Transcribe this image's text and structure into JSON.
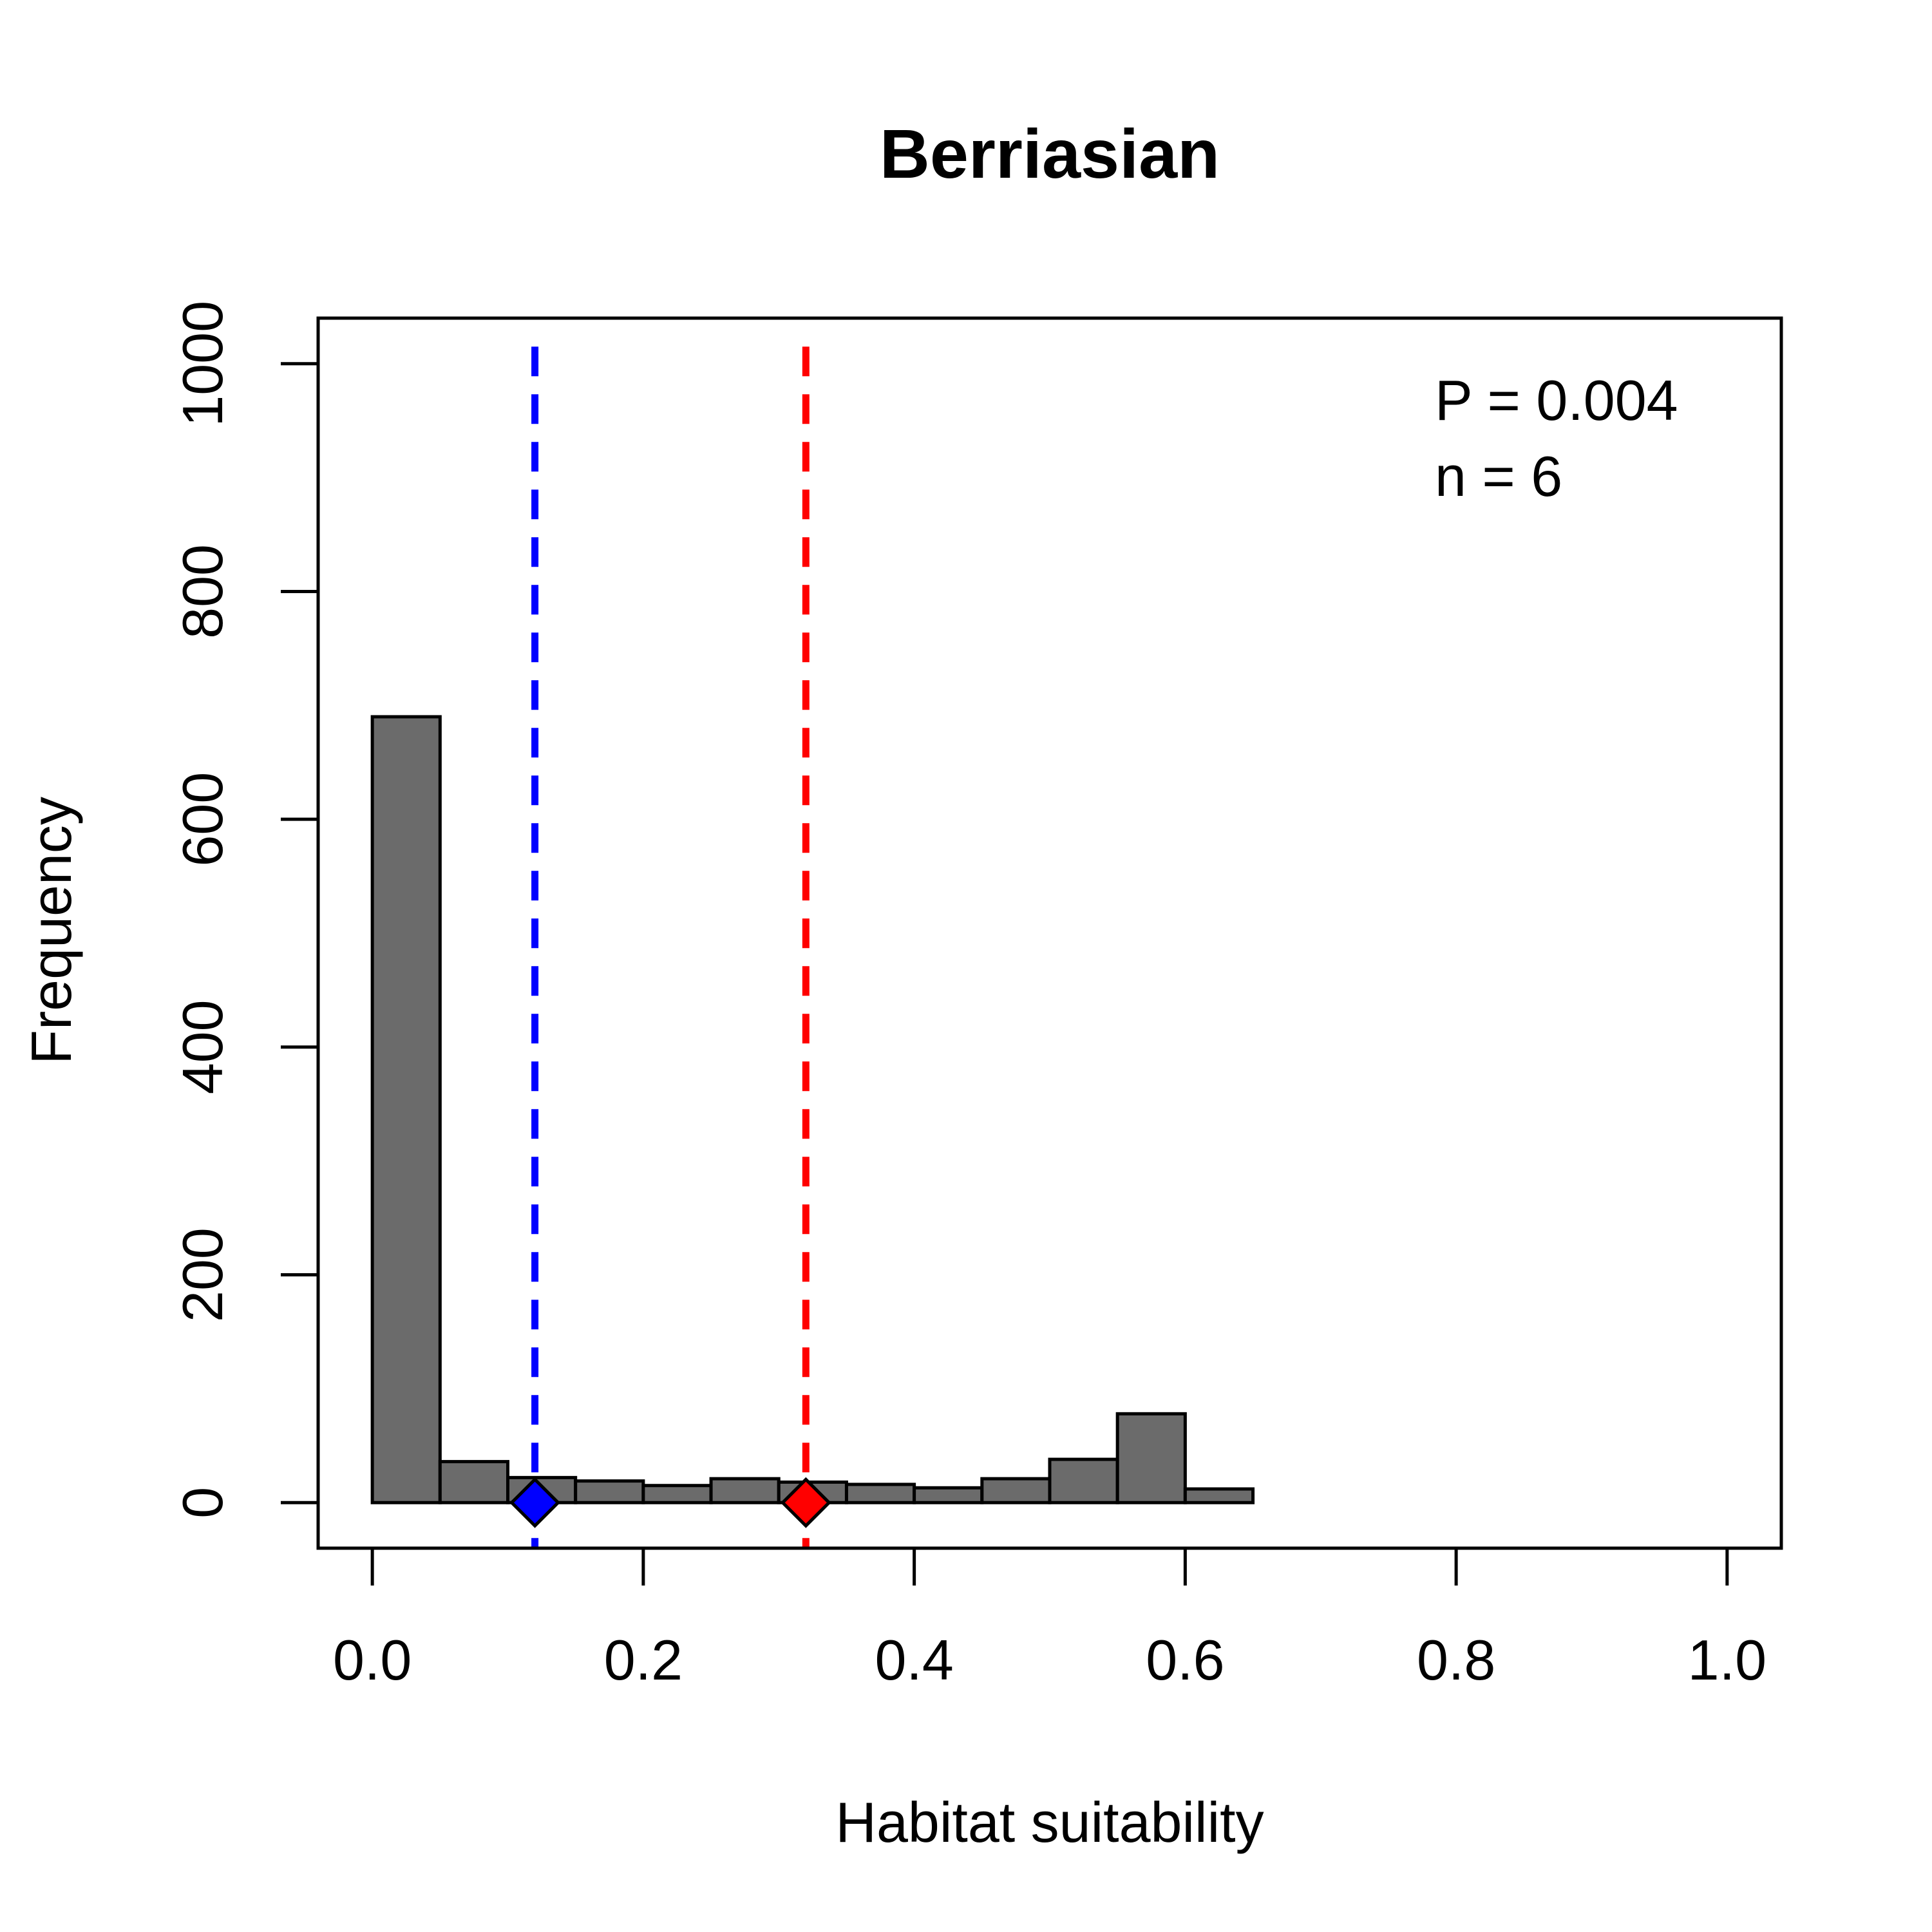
{
  "chart_data": {
    "type": "bar",
    "title": "Berriasian",
    "xlabel": "Habitat suitability",
    "ylabel": "Frequency",
    "xlim": [
      -0.04,
      1.04
    ],
    "ylim": [
      -40,
      1040
    ],
    "x_ticks": [
      0.0,
      0.2,
      0.4,
      0.6,
      0.8,
      1.0
    ],
    "x_tick_labels": [
      "0.0",
      "0.2",
      "0.4",
      "0.6",
      "0.8",
      "1.0"
    ],
    "y_ticks": [
      0,
      200,
      400,
      600,
      800,
      1000
    ],
    "y_tick_labels": [
      "0",
      "200",
      "400",
      "600",
      "800",
      "1000"
    ],
    "bin_width": 0.05,
    "bins": [
      {
        "start": 0.0,
        "end": 0.05,
        "count": 690
      },
      {
        "start": 0.05,
        "end": 0.1,
        "count": 36
      },
      {
        "start": 0.1,
        "end": 0.15,
        "count": 22
      },
      {
        "start": 0.15,
        "end": 0.2,
        "count": 19
      },
      {
        "start": 0.2,
        "end": 0.25,
        "count": 15
      },
      {
        "start": 0.25,
        "end": 0.3,
        "count": 21
      },
      {
        "start": 0.3,
        "end": 0.35,
        "count": 18
      },
      {
        "start": 0.35,
        "end": 0.4,
        "count": 16
      },
      {
        "start": 0.4,
        "end": 0.45,
        "count": 13
      },
      {
        "start": 0.45,
        "end": 0.5,
        "count": 21
      },
      {
        "start": 0.5,
        "end": 0.55,
        "count": 38
      },
      {
        "start": 0.55,
        "end": 0.6,
        "count": 78
      },
      {
        "start": 0.6,
        "end": 0.65,
        "count": 12
      }
    ],
    "reference_lines": [
      {
        "x": 0.12,
        "color": "#0000ff"
      },
      {
        "x": 0.32,
        "color": "#ff0000"
      }
    ],
    "bar_color": "#6b6b6b",
    "annotations": {
      "p_text": "P  =  0.004",
      "n_text": "n  =  6"
    },
    "grid": false
  }
}
